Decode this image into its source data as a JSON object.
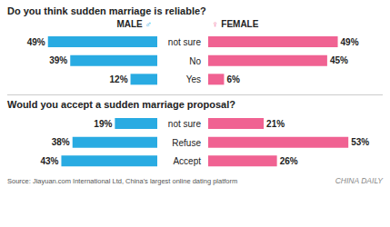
{
  "chart_data": [
    {
      "type": "bar",
      "orientation": "horizontal",
      "title": "Do you think sudden marriage is reliable?",
      "categories": [
        "Yes",
        "No",
        "not sure"
      ],
      "series": [
        {
          "name": "MALE",
          "color": "#29ABE2",
          "values": [
            12,
            39,
            49
          ],
          "value_labels": [
            "12%",
            "39%",
            "49%"
          ]
        },
        {
          "name": "FEMALE",
          "color": "#F06292",
          "values": [
            6,
            45,
            49
          ],
          "value_labels": [
            "6%",
            "45%",
            "49%"
          ]
        }
      ],
      "xlim": [
        0,
        55
      ],
      "data_labels": true,
      "tick_labels": "y",
      "annotations": [
        "♂",
        "♀"
      ]
    },
    {
      "type": "bar",
      "orientation": "horizontal",
      "title": "Would you accept a sudden marriage proposal?",
      "categories": [
        "Accept",
        "Refuse",
        "not sure"
      ],
      "series": [
        {
          "color": "#29ABE2",
          "values": [
            43,
            38,
            19
          ],
          "value_labels": [
            "43%",
            "38%",
            "19%"
          ]
        },
        {
          "color": "#F06292",
          "values": [
            26,
            53,
            21
          ],
          "value_labels": [
            "26%",
            "53%",
            "21%"
          ]
        }
      ],
      "xlim": [
        0,
        55
      ],
      "data_labels": true,
      "tick_labels": "y",
      "annotations": [
        "Source: Jiayuan.com International Ltd, China's largest online dating platform",
        "CHINA DAILY"
      ]
    }
  ]
}
